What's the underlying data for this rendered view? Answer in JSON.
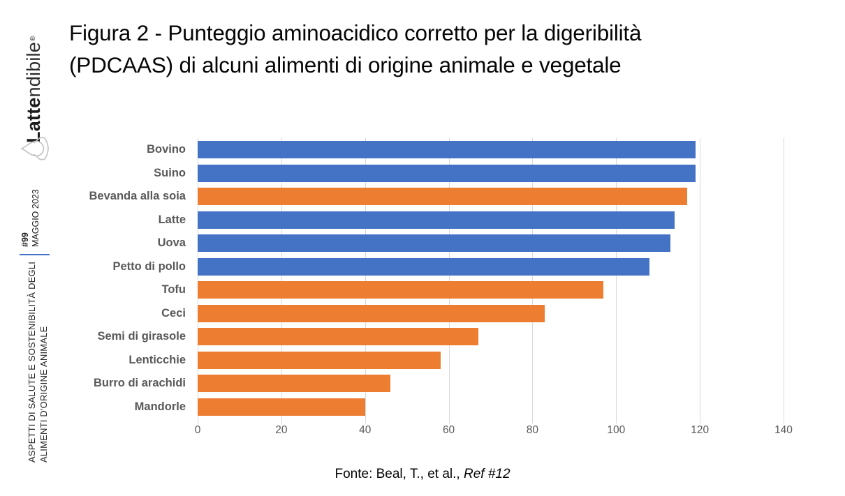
{
  "sidebar": {
    "logo": {
      "bold": "Latte",
      "light": "ndibile",
      "reg_mark": "®",
      "icon": "drop-in-hand-icon"
    },
    "issue_number": "#99",
    "issue_date": "MAGGIO 2023",
    "series_title_line1": "ASPETTI DI SALUTE E SOSTENIBILITÀ DEGLI",
    "series_title_line2": "ALIMENTI D'ORIGINE ANIMALE"
  },
  "title_line1": "Figura 2 - Punteggio aminoacidico corretto per la digeribilità",
  "title_line2": "(PDCAAS) di alcuni alimenti di origine animale e vegetale",
  "footer": {
    "source_prefix": "Fonte: Beal, T., et al., ",
    "source_ref_italic": "Ref #12"
  },
  "colors": {
    "animale": "#4472C4",
    "vegetale": "#ED7D31",
    "gridline": "#D9D9D9",
    "axis_text": "#595959",
    "divider": "#4472C4"
  },
  "chart_data": {
    "type": "bar",
    "orientation": "horizontal",
    "title": "Figura 2 - Punteggio aminoacidico corretto per la digeribilità (PDCAAS) di alcuni alimenti di origine animale e vegetale",
    "xlabel": "",
    "ylabel": "",
    "xlim": [
      0,
      140
    ],
    "xticks": [
      0,
      20,
      40,
      60,
      80,
      100,
      120,
      140
    ],
    "grid": true,
    "legend_position": "none",
    "categories": [
      "Bovino",
      "Suino",
      "Bevanda alla soia",
      "Latte",
      "Uova",
      "Petto di pollo",
      "Tofu",
      "Ceci",
      "Semi di girasole",
      "Lenticchie",
      "Burro di arachidi",
      "Mandorle"
    ],
    "values": [
      119,
      119,
      117,
      114,
      113,
      108,
      97,
      83,
      67,
      58,
      46,
      40
    ],
    "groups": [
      "animale",
      "animale",
      "vegetale",
      "animale",
      "animale",
      "animale",
      "vegetale",
      "vegetale",
      "vegetale",
      "vegetale",
      "vegetale",
      "vegetale"
    ]
  }
}
